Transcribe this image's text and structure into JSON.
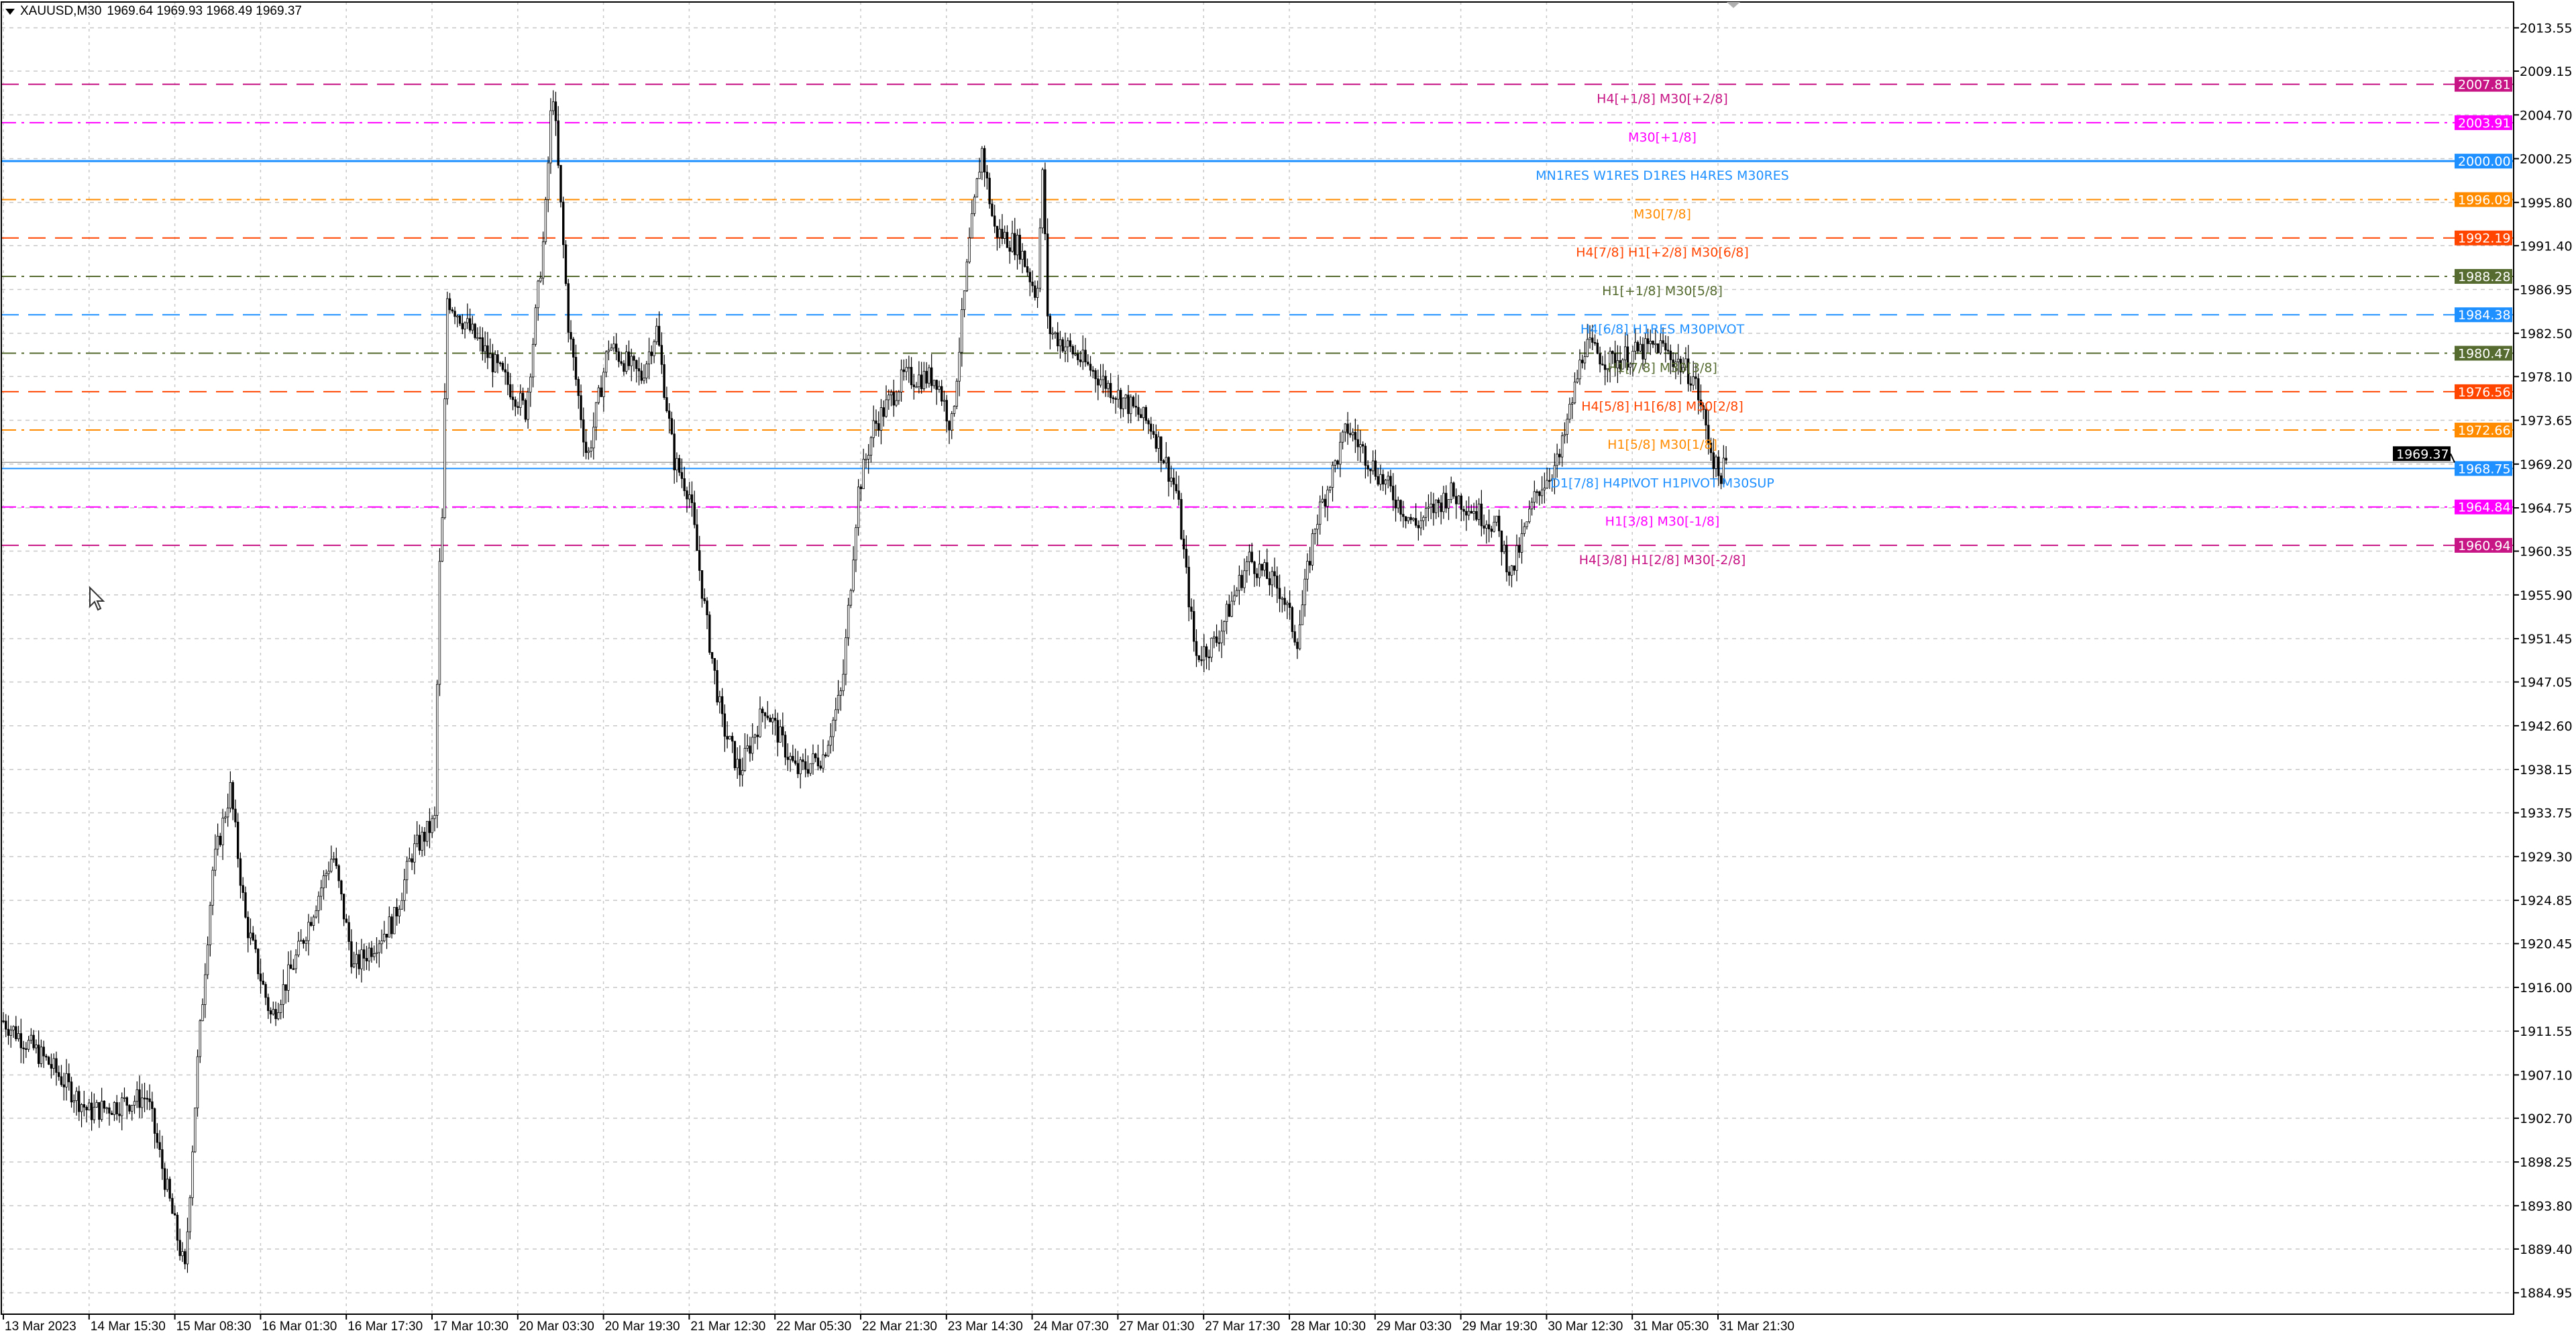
{
  "header": {
    "symbol": "XAUUSD,M30",
    "ohlc": "1969.64 1969.93 1968.49 1969.37"
  },
  "chart_data": {
    "type": "candlestick",
    "title": "XAUUSD,M30",
    "current_price": "1969.37",
    "grid": true,
    "y_ticks": [
      "2013.55",
      "2009.15",
      "2004.70",
      "2000.25",
      "1995.80",
      "1991.40",
      "1986.95",
      "1982.50",
      "1978.10",
      "1973.65",
      "1969.20",
      "1964.75",
      "1960.35",
      "1955.90",
      "1951.45",
      "1947.05",
      "1942.60",
      "1938.15",
      "1933.75",
      "1929.30",
      "1924.85",
      "1920.45",
      "1916.00",
      "1911.55",
      "1907.10",
      "1902.70",
      "1898.25",
      "1893.80",
      "1889.40",
      "1884.95"
    ],
    "x_ticks": [
      "13 Mar 2023",
      "14 Mar 15:30",
      "15 Mar 08:30",
      "16 Mar 01:30",
      "16 Mar 17:30",
      "17 Mar 10:30",
      "20 Mar 03:30",
      "20 Mar 19:30",
      "21 Mar 12:30",
      "22 Mar 05:30",
      "22 Mar 21:30",
      "23 Mar 14:30",
      "24 Mar 07:30",
      "27 Mar 01:30",
      "27 Mar 17:30",
      "28 Mar 10:30",
      "29 Mar 03:30",
      "29 Mar 19:30",
      "30 Mar 12:30",
      "31 Mar 05:30",
      "31 Mar 21:30"
    ],
    "price_path_approx": [
      [
        "13 Mar 22:30",
        1912.6
      ],
      [
        "14 Mar 07:30",
        1908.3
      ],
      [
        "14 Mar 15:30",
        1903.3
      ],
      [
        "15 Mar 03:00",
        1904.9
      ],
      [
        "15 Mar 10:30",
        1887.0
      ],
      [
        "15 Mar 13:00",
        1908.3
      ],
      [
        "15 Mar 16:00",
        1927.9
      ],
      [
        "15 Mar 19:30",
        1936.2
      ],
      [
        "15 Mar 22:30",
        1922.9
      ],
      [
        "16 Mar 03:30",
        1912.9
      ],
      [
        "16 Mar 08:30",
        1919.5
      ],
      [
        "16 Mar 15:00",
        1929.6
      ],
      [
        "16 Mar 19:00",
        1917.9
      ],
      [
        "17 Mar 03:00",
        1922.9
      ],
      [
        "17 Mar 06:30",
        1929.6
      ],
      [
        "17 Mar 12:30",
        1932.9
      ],
      [
        "17 Mar 16:00",
        1957.9
      ],
      [
        "17 Mar 19:30",
        1966.3
      ],
      [
        "17 Mar 21:00",
        1986.3
      ],
      [
        "20 Mar 01:30",
        1976.3
      ],
      [
        "20 Mar 05:00",
        1974.6
      ],
      [
        "20 Mar 08:30",
        1993.0
      ],
      [
        "20 Mar 10:00",
        2008.0
      ],
      [
        "20 Mar 13:00",
        1983.0
      ],
      [
        "20 Mar 16:30",
        1969.6
      ],
      [
        "20 Mar 20:30",
        1981.3
      ],
      [
        "21 Mar 03:00",
        1978.0
      ],
      [
        "21 Mar 06:00",
        1983.0
      ],
      [
        "21 Mar 09:30",
        1969.6
      ],
      [
        "21 Mar 12:30",
        1966.3
      ],
      [
        "21 Mar 16:00",
        1952.9
      ],
      [
        "21 Mar 19:00",
        1942.9
      ],
      [
        "21 Mar 22:30",
        1937.9
      ],
      [
        "22 Mar 03:30",
        1944.6
      ],
      [
        "22 Mar 09:30",
        1937.9
      ],
      [
        "22 Mar 14:30",
        1939.6
      ],
      [
        "22 Mar 18:00",
        1946.2
      ],
      [
        "22 Mar 21:00",
        1966.3
      ],
      [
        "23 Mar 00:00",
        1972.9
      ],
      [
        "23 Mar 06:00",
        1978.0
      ],
      [
        "23 Mar 12:30",
        1978.0
      ],
      [
        "23 Mar 15:30",
        1972.9
      ],
      [
        "23 Mar 19:00",
        1991.3
      ],
      [
        "23 Mar 21:30",
        2001.3
      ],
      [
        "24 Mar 00:00",
        1993.0
      ],
      [
        "24 Mar 05:00",
        1991.3
      ],
      [
        "24 Mar 11:00",
        1986.3
      ],
      [
        "24 Mar 16:00",
        1999.7
      ],
      [
        "24 Mar 19:30",
        1983.0
      ],
      [
        "27 Mar 01:00",
        1976.3
      ],
      [
        "27 Mar 08:00",
        1972.9
      ],
      [
        "27 Mar 12:30",
        1966.3
      ],
      [
        "27 Mar 16:00",
        1949.6
      ],
      [
        "27 Mar 20:00",
        1951.2
      ],
      [
        "28 Mar 02:30",
        1959.6
      ],
      [
        "28 Mar 09:00",
        1956.2
      ],
      [
        "28 Mar 12:00",
        1951.2
      ],
      [
        "28 Mar 15:30",
        1962.9
      ],
      [
        "28 Mar 22:00",
        1972.9
      ],
      [
        "29 Mar 04:30",
        1967.9
      ],
      [
        "29 Mar 11:00",
        1962.9
      ],
      [
        "29 Mar 17:30",
        1966.3
      ],
      [
        "30 Mar 02:30",
        1962.9
      ],
      [
        "30 Mar 05:30",
        1957.9
      ],
      [
        "30 Mar 10:30",
        1966.3
      ],
      [
        "30 Mar 15:00",
        1969.6
      ],
      [
        "30 Mar 20:00",
        1981.3
      ],
      [
        "31 Mar 01:00",
        1979.6
      ],
      [
        "31 Mar 10:30",
        1981.3
      ],
      [
        "31 Mar 17:00",
        1978.0
      ],
      [
        "31 Mar 21:30",
        1967.9
      ],
      [
        "31 Mar 23:30",
        1969.37
      ]
    ],
    "levels": [
      {
        "price": "2007.81",
        "label": "H4[+1/8] M30[+2/8]",
        "color": "#c71585",
        "style": "dash"
      },
      {
        "price": "2003.91",
        "label": "M30[+1/8]",
        "color": "#ff00ff",
        "style": "dashdot"
      },
      {
        "price": "2000.00",
        "label": "MN1RES W1RES D1RES H4RES M30RES",
        "color": "#1e90ff",
        "style": "solid"
      },
      {
        "price": "1996.09",
        "label": "M30[7/8]",
        "color": "#ff8c00",
        "style": "dashdot"
      },
      {
        "price": "1992.19",
        "label": "H4[7/8] H1[+2/8] M30[6/8]",
        "color": "#ff4500",
        "style": "dash"
      },
      {
        "price": "1988.28",
        "label": "H1[+1/8] M30[5/8]",
        "color": "#556b2f",
        "style": "dashdot"
      },
      {
        "price": "1984.38",
        "label": "H4[6/8] H1RES M30PIVOT",
        "color": "#1e90ff",
        "style": "dash"
      },
      {
        "price": "1980.47",
        "label": "H1[7/8] M30[3/8]",
        "color": "#556b2f",
        "style": "dashdot"
      },
      {
        "price": "1976.56",
        "label": "H4[5/8] H1[6/8] M30[2/8]",
        "color": "#ff4500",
        "style": "dash"
      },
      {
        "price": "1972.66",
        "label": "H1[5/8] M30[1/8]",
        "color": "#ff8c00",
        "style": "dashdot"
      },
      {
        "price": "1968.75",
        "label": "D1[7/8] H4PIVOT H1PIVOT M30SUP",
        "color": "#1e90ff",
        "style": "solid"
      },
      {
        "price": "1964.84",
        "label": "H1[3/8] M30[-1/8]",
        "color": "#ff00ff",
        "style": "dashdot"
      },
      {
        "price": "1960.94",
        "label": "H4[3/8] H1[2/8] M30[-2/8]",
        "color": "#c71585",
        "style": "dash"
      }
    ]
  }
}
